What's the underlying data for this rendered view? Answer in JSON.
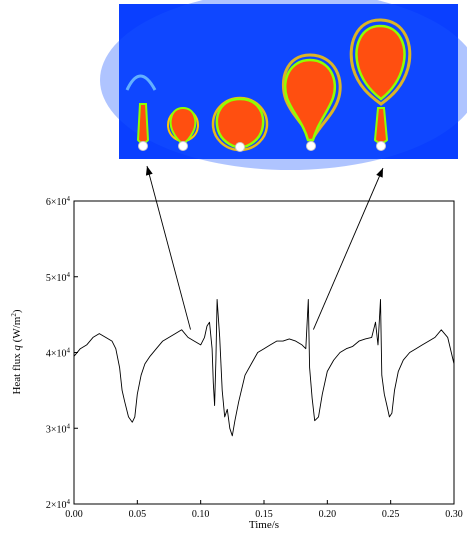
{
  "chart_data": {
    "type": "line",
    "xlabel": "Time/s",
    "ylabel_main": "Heat flux ",
    "ylabel_symbol": "q",
    "ylabel_units_open": " (W/m",
    "ylabel_units_exp": "2",
    "ylabel_units_close": ")",
    "xlim": [
      0.0,
      0.3
    ],
    "ylim": [
      20000,
      60000
    ],
    "xticks": [
      0.0,
      0.05,
      0.1,
      0.15,
      0.2,
      0.25,
      0.3
    ],
    "xtick_labels": [
      "0.00",
      "0.05",
      "0.10",
      "0.15",
      "0.20",
      "0.25",
      "0.30"
    ],
    "yticks": [
      {
        "value": 20000,
        "mantissa": "2×10",
        "exp": "4"
      },
      {
        "value": 30000,
        "mantissa": "3×10",
        "exp": "4"
      },
      {
        "value": 40000,
        "mantissa": "4×10",
        "exp": "4"
      },
      {
        "value": 50000,
        "mantissa": "5×10",
        "exp": "4"
      },
      {
        "value": 60000,
        "mantissa": "6×10",
        "exp": "4"
      }
    ],
    "grid": false,
    "line_color": "#000000",
    "series": [
      {
        "x": [
          0.0,
          0.005,
          0.01,
          0.015,
          0.02,
          0.025,
          0.03,
          0.033,
          0.036,
          0.038,
          0.04,
          0.043,
          0.046,
          0.048,
          0.05,
          0.053,
          0.056,
          0.06,
          0.065,
          0.07,
          0.075,
          0.08,
          0.085,
          0.09,
          0.095,
          0.1,
          0.103,
          0.105,
          0.107,
          0.109,
          0.11,
          0.111,
          0.112,
          0.113,
          0.115,
          0.117,
          0.119,
          0.121,
          0.123,
          0.125,
          0.127,
          0.13,
          0.135,
          0.14,
          0.145,
          0.15,
          0.155,
          0.16,
          0.165,
          0.17,
          0.175,
          0.18,
          0.183,
          0.185,
          0.186,
          0.188,
          0.19,
          0.193,
          0.196,
          0.2,
          0.205,
          0.21,
          0.215,
          0.22,
          0.225,
          0.23,
          0.235,
          0.238,
          0.24,
          0.242,
          0.243,
          0.245,
          0.247,
          0.249,
          0.251,
          0.253,
          0.256,
          0.26,
          0.265,
          0.27,
          0.275,
          0.28,
          0.285,
          0.29,
          0.295,
          0.3
        ],
        "y": [
          39500,
          40500,
          41000,
          42000,
          42500,
          42000,
          41500,
          40500,
          38000,
          35000,
          33500,
          31500,
          30800,
          31500,
          34500,
          37000,
          38500,
          39500,
          40500,
          41500,
          42000,
          42500,
          43000,
          42000,
          41500,
          41000,
          42000,
          43500,
          44000,
          40500,
          36000,
          33000,
          39000,
          47000,
          42000,
          35000,
          31500,
          32500,
          30000,
          29000,
          31000,
          33500,
          37000,
          38500,
          40000,
          40500,
          41000,
          41500,
          41500,
          41800,
          41500,
          41000,
          40500,
          47000,
          38000,
          34000,
          31000,
          31500,
          34500,
          37500,
          39000,
          40000,
          40500,
          40800,
          41500,
          41800,
          42000,
          44000,
          41000,
          47000,
          37000,
          34500,
          33000,
          31500,
          32000,
          35000,
          37500,
          39000,
          40000,
          40500,
          41000,
          41500,
          42000,
          43000,
          42000,
          38500
        ]
      }
    ],
    "annotation_arrows": [
      {
        "from": [
          0.092,
          42500
        ],
        "to_inset": "left"
      },
      {
        "from": [
          0.189,
          42500
        ],
        "to_inset": "right"
      }
    ],
    "inset": {
      "background": "#0a3fff",
      "bubble_fill": "#ff4f10",
      "bubble_outline": "#8fff00",
      "bubble_halo": "#ffc800",
      "needle_color": "#e0ffe0",
      "nucleation_site": "#ffffff"
    }
  }
}
